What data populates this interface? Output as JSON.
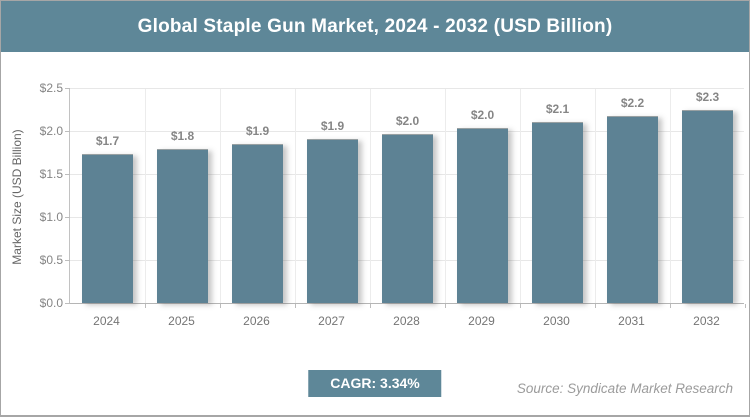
{
  "header": {
    "title": "Global Staple Gun Market, 2024 - 2032 (USD Billion)"
  },
  "colors": {
    "accent_slate": "#5e8798",
    "bar_fill": "#5d8294",
    "gridline": "#e7e7e7",
    "tick_label": "#858585",
    "value_label": "#868686",
    "source_text": "#9b9b9b"
  },
  "chart_data": {
    "type": "bar",
    "title": "Global Staple Gun Market, 2024 - 2032 (USD Billion)",
    "xlabel": "",
    "ylabel": "Market Size (USD Billion)",
    "categories": [
      "2024",
      "2025",
      "2026",
      "2027",
      "2028",
      "2029",
      "2030",
      "2031",
      "2032"
    ],
    "values": [
      1.73,
      1.79,
      1.85,
      1.91,
      1.97,
      2.04,
      2.11,
      2.18,
      2.25
    ],
    "bar_labels": [
      "$1.7",
      "$1.8",
      "$1.9",
      "$1.9",
      "$2.0",
      "$2.0",
      "$2.1",
      "$2.2",
      "$2.3"
    ],
    "ylim": [
      0,
      2.5
    ],
    "ytick_step": 0.5,
    "ytick_labels": [
      "$0.0",
      "$0.5",
      "$1.0",
      "$1.5",
      "$2.0",
      "$2.5"
    ],
    "grid": true,
    "legend": false
  },
  "footer": {
    "cagr_label": "CAGR: 3.34%",
    "source": "Source: Syndicate Market Research"
  }
}
